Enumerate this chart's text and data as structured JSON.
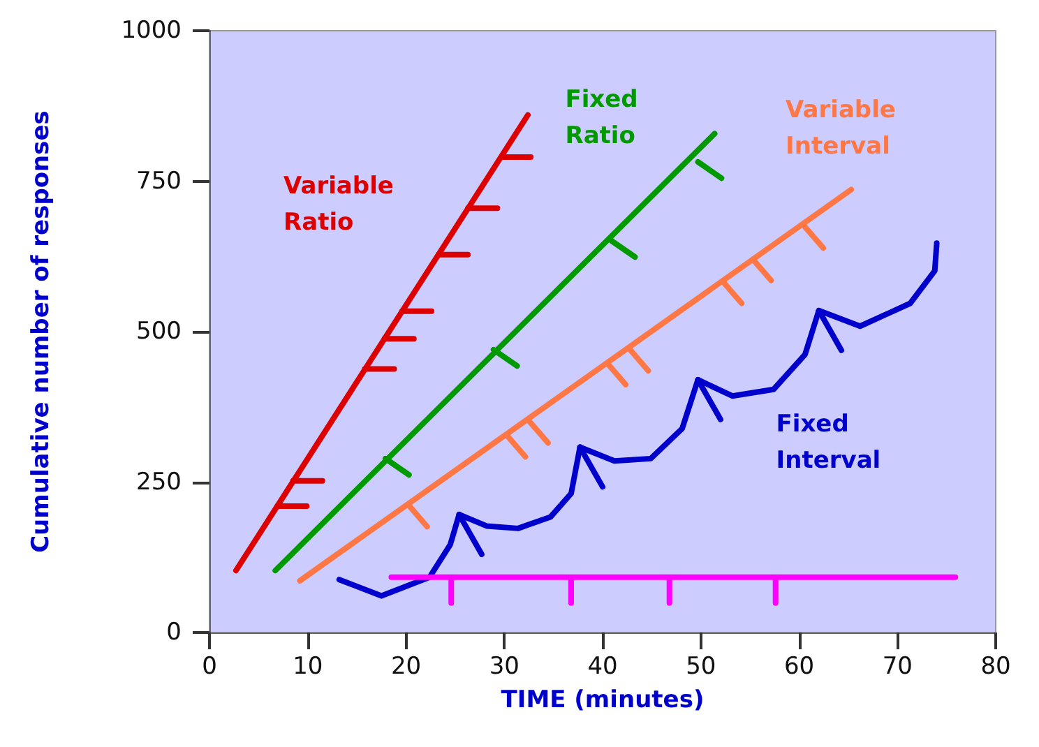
{
  "chart_data": {
    "type": "line",
    "xlabel": "TIME (minutes)",
    "ylabel": "Cumulative number of responses",
    "xlim": [
      0,
      80
    ],
    "xticks": [
      0,
      10,
      20,
      30,
      40,
      50,
      60,
      70,
      80
    ],
    "ylim": [
      0,
      1000
    ],
    "yticks": [
      0,
      250,
      500,
      750,
      1000
    ],
    "grid": false,
    "marker": "none",
    "line_style": "solid",
    "series": [
      {
        "name": "Variable Ratio",
        "color": "#dd0000",
        "x": [
          2.7,
          32.4
        ],
        "values": [
          103,
          860
        ]
      },
      {
        "name": "Fixed Ratio",
        "color": "#009900",
        "x": [
          6.7,
          51.4
        ],
        "values": [
          103,
          829
        ]
      },
      {
        "name": "Variable Interval",
        "color": "#ff7744",
        "x": [
          9.2,
          65.3
        ],
        "values": [
          86,
          736
        ]
      },
      {
        "name": "Fixed Interval",
        "color": "#0000cc",
        "x": [
          13.2,
          17.5,
          22.4,
          24.5,
          25.4,
          28.2,
          31.4,
          34.7,
          36.8,
          37.7,
          41.2,
          44.9,
          48.1,
          49.7,
          53.2,
          57.4,
          60.6,
          62,
          66.2,
          71.3,
          73.8,
          74
        ],
        "values": [
          88,
          61,
          92,
          146,
          196,
          177,
          173,
          192,
          231,
          308,
          285,
          289,
          339,
          420,
          393,
          404,
          462,
          535,
          509,
          547,
          601,
          647
        ]
      },
      {
        "color": "#dd0000",
        "x": [
          29.7,
          32.7,
          null,
          26.3,
          29.3,
          null,
          23.3,
          26.3,
          null,
          19.6,
          22.6,
          null,
          17.8,
          20.8,
          null,
          15.8,
          18.8,
          null,
          8.5,
          11.5,
          null,
          6.9,
          9.9
        ],
        "values": [
          790,
          790,
          null,
          705,
          705,
          null,
          628,
          628,
          null,
          534,
          534,
          null,
          488,
          488,
          null,
          438,
          438,
          null,
          252,
          252,
          null,
          210,
          210
        ]
      },
      {
        "color": "#009900",
        "x": [
          17.9,
          20.3,
          null,
          28.9,
          31.3,
          null,
          40.9,
          43.3,
          null,
          49.7,
          52.1
        ],
        "values": [
          289,
          262,
          null,
          470,
          443,
          null,
          651,
          624,
          null,
          782,
          755
        ]
      },
      {
        "color": "#ff7744",
        "x": [
          20.3,
          22.15,
          null,
          30.3,
          32.15,
          null,
          32.6,
          34.45,
          null,
          40.5,
          42.35,
          null,
          42.8,
          44.65,
          null,
          52.3,
          54.15,
          null,
          55.3,
          57.15,
          null,
          60.6,
          62.45
        ],
        "values": [
          211,
          176,
          null,
          327,
          292,
          null,
          350,
          315,
          null,
          447,
          412,
          null,
          470,
          435,
          null,
          582,
          547,
          null,
          620,
          585,
          null,
          674,
          639
        ]
      },
      {
        "color": "#0000cc",
        "x": [
          25.4,
          27.7,
          null,
          37.7,
          40,
          null,
          49.7,
          52,
          null,
          62,
          64.3
        ],
        "values": [
          196,
          130,
          null,
          308,
          242,
          null,
          420,
          354,
          null,
          535,
          469
        ]
      },
      {
        "color": "#ff00ff",
        "x": [
          18.5,
          75.9,
          null,
          24.6,
          24.6,
          null,
          36.8,
          36.8,
          null,
          46.8,
          46.8,
          null,
          57.6,
          57.6
        ],
        "values": [
          92,
          92,
          null,
          92,
          49,
          null,
          92,
          49,
          null,
          92,
          49,
          null,
          92,
          49
        ]
      }
    ]
  }
}
